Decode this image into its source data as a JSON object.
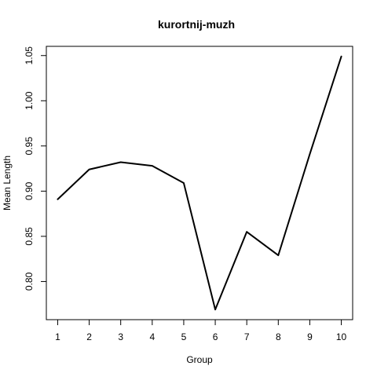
{
  "chart_data": {
    "type": "line",
    "title": "kurortnij-muzh",
    "xlabel": "Group",
    "ylabel": "Mean Length",
    "x": [
      1,
      2,
      3,
      4,
      5,
      6,
      7,
      8,
      9,
      10
    ],
    "series": [
      {
        "values": [
          0.891,
          0.924,
          0.932,
          0.928,
          0.909,
          0.769,
          0.855,
          0.829,
          0.941,
          1.049
        ],
        "color": "#000000"
      }
    ],
    "xticks": [
      "1",
      "2",
      "3",
      "4",
      "5",
      "6",
      "7",
      "8",
      "9",
      "10"
    ],
    "yticks": [
      "0.80",
      "0.85",
      "0.90",
      "0.95",
      "1.00",
      "1.05"
    ],
    "xlim": [
      0.64,
      10.36
    ],
    "ylim": [
      0.7578,
      1.0602
    ],
    "grid": false,
    "legend": "none"
  }
}
